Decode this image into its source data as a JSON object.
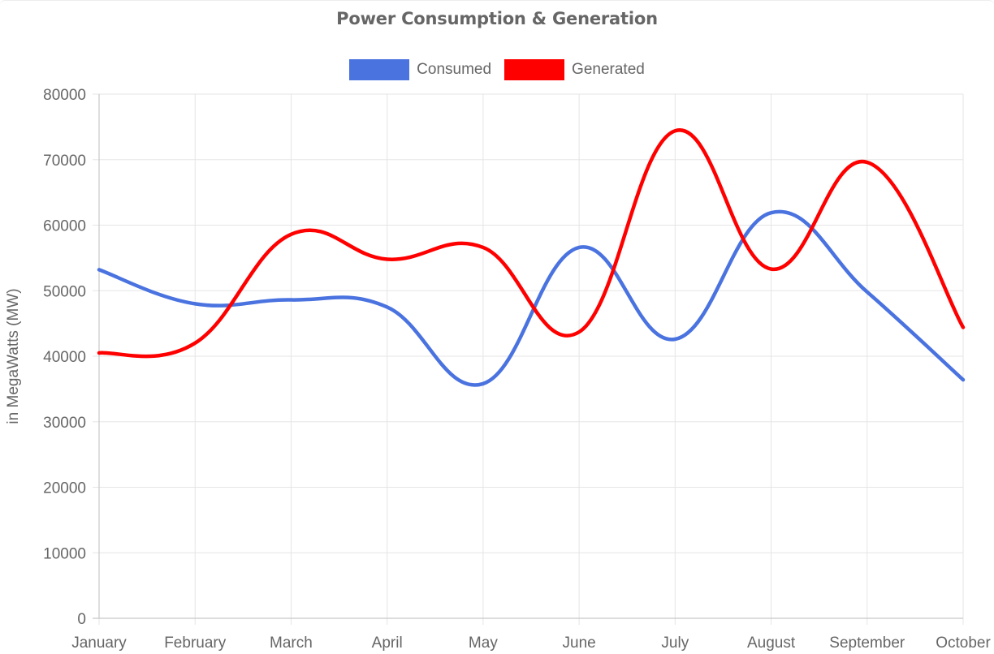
{
  "chart_data": {
    "type": "line",
    "title": "Power Consumption & Generation",
    "xlabel": "",
    "ylabel": "in MegaWatts (MW)",
    "ylim": [
      0,
      80000
    ],
    "y_ticks": [
      "0",
      "10000",
      "20000",
      "30000",
      "40000",
      "50000",
      "60000",
      "70000",
      "80000"
    ],
    "categories": [
      "January",
      "February",
      "March",
      "April",
      "May",
      "June",
      "July",
      "August",
      "September",
      "October"
    ],
    "grid": true,
    "legend_position": "top-center",
    "series": [
      {
        "name": "Consumed",
        "color": "#4a73e0",
        "values": [
          53200,
          48000,
          48600,
          47500,
          35800,
          56600,
          42600,
          61900,
          49800,
          36400
        ]
      },
      {
        "name": "Generated",
        "color": "#ff0000",
        "values": [
          40500,
          42000,
          58600,
          54800,
          56600,
          43700,
          74400,
          53300,
          69600,
          44400
        ]
      }
    ]
  }
}
